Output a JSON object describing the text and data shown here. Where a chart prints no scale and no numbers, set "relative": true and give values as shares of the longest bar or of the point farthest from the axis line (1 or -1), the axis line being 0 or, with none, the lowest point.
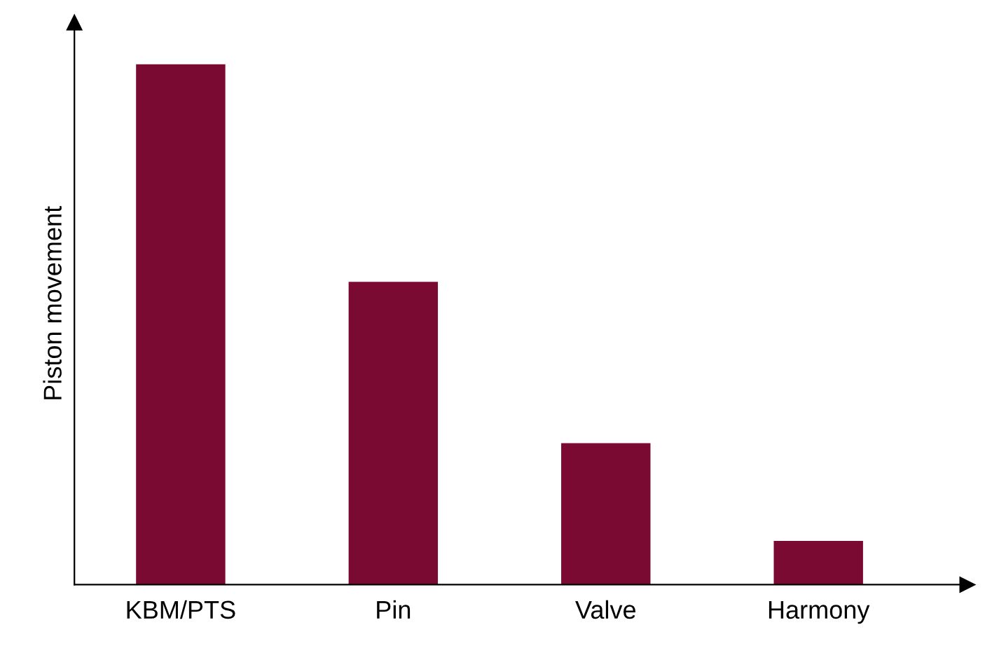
{
  "chart_data": {
    "type": "bar",
    "relative": true,
    "ylabel": "Piston movement",
    "categories": [
      "KBM/PTS",
      "Pin",
      "Valve",
      "Harmony"
    ],
    "values": [
      1,
      0.582,
      0.272,
      0.084
    ],
    "color": "#7a0a32",
    "grid": false,
    "legend": false
  }
}
